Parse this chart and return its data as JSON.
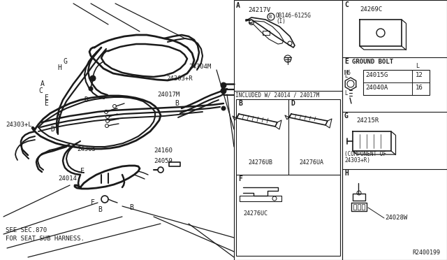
{
  "bg_color": "#ffffff",
  "line_color": "#1a1a1a",
  "text_color": "#1a1a1a",
  "fig_width": 6.4,
  "fig_height": 3.72,
  "dpi": 100,
  "notes": {
    "ground_bolt": "GROUND BOLT",
    "component_of": "(COMPONENT OF",
    "component_ref": "24303+R)",
    "included": "INCLUDED W/ 24014 / 24017M",
    "see_sec": "SEE SEC.870",
    "for_seat": "FOR SEAT SUB HARNESS.",
    "ref_code": "R2400199"
  }
}
